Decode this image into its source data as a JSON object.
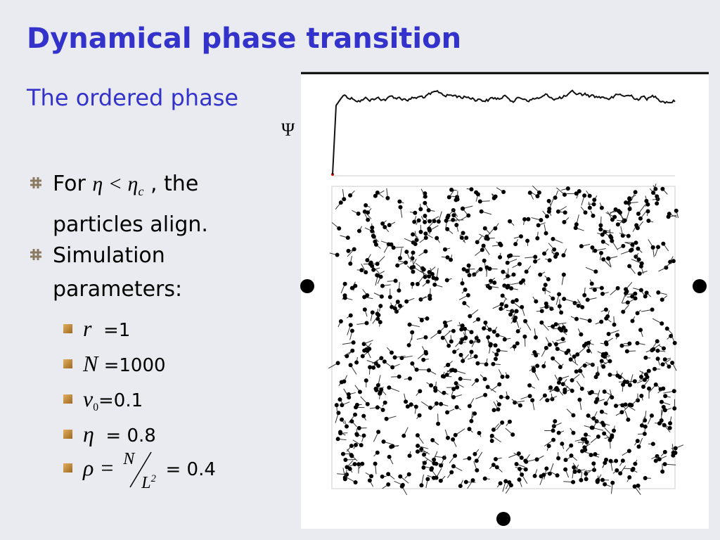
{
  "title": "Dynamical phase transition",
  "subtitle": "The ordered phase",
  "figure": {
    "axis_label": "Ψ"
  },
  "bullets": [
    {
      "prefix": "For",
      "math": "η < η",
      "subscript": "c",
      "suffix": " , the particles align."
    },
    {
      "text": "Simulation parameters:"
    }
  ],
  "parameters": [
    {
      "symbol": "r",
      "value": "=1"
    },
    {
      "symbol": "N",
      "value": "=1000"
    },
    {
      "symbol": "v",
      "subscript": "0",
      "value": "=0.1"
    },
    {
      "symbol": "η",
      "value": "= 0.8"
    },
    {
      "symbol": "ρ =",
      "numerator": "N",
      "denominator": "L",
      "superscript": "2",
      "value": "= 0.4"
    }
  ]
}
